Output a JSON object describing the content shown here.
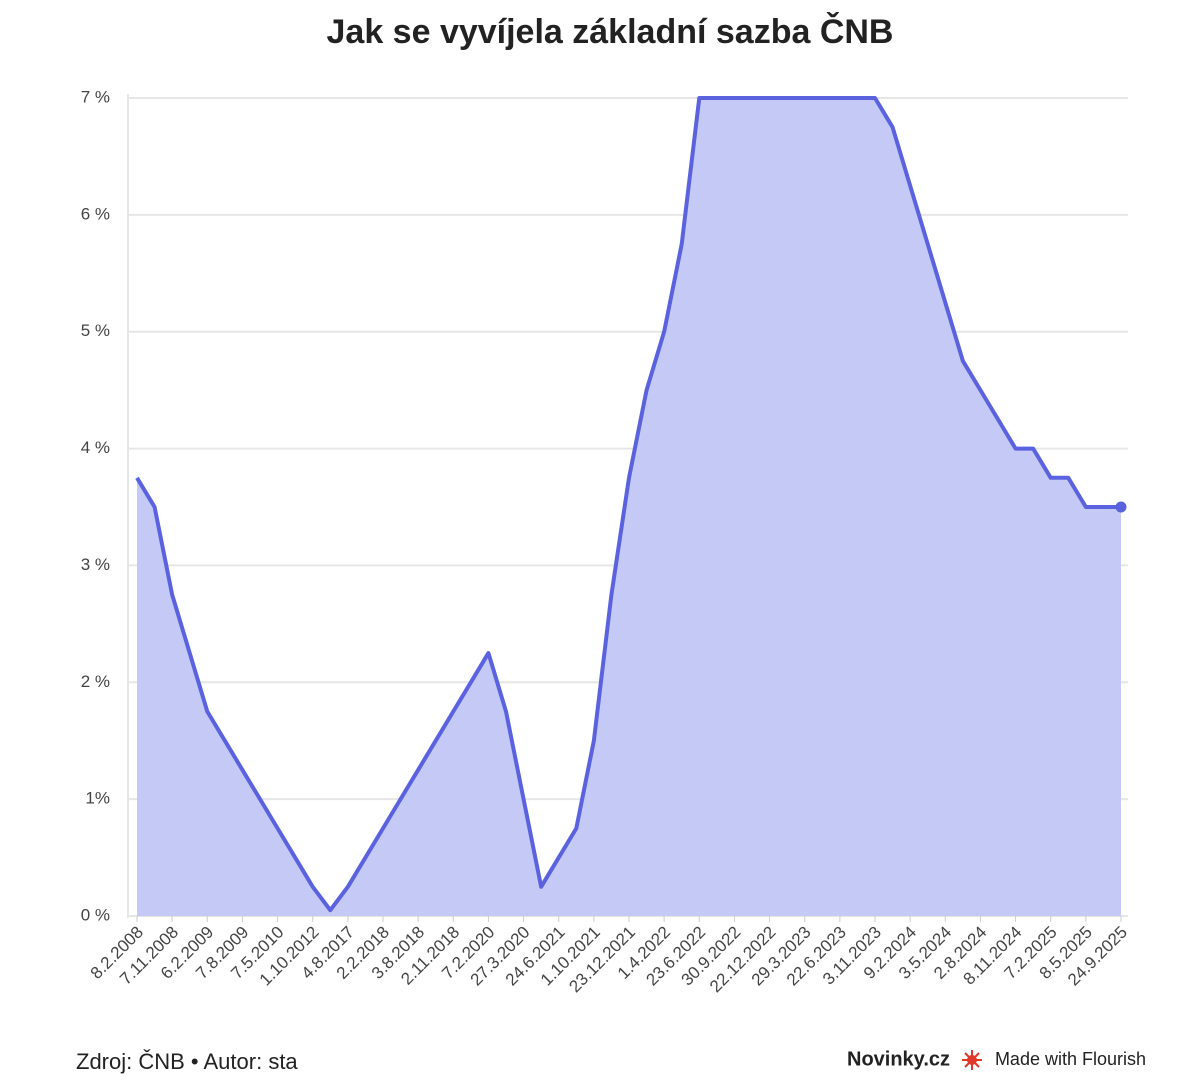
{
  "chart_data": {
    "type": "area",
    "title": "Jak se vyvíjela základní sazba ČNB",
    "categories": [
      "8.2.2008",
      null,
      "7.11.2008",
      null,
      "6.2.2009",
      null,
      "7.8.2009",
      null,
      "7.5.2010",
      null,
      "1.10.2012",
      null,
      "4.8.2017",
      null,
      "2.2.2018",
      null,
      "3.8.2018",
      null,
      "2.11.2018",
      null,
      "7.2.2020",
      null,
      "27.3.2020",
      null,
      "24.6.2021",
      null,
      "1.10.2021",
      null,
      "23.12.2021",
      null,
      "1.4.2022",
      null,
      "23.6.2022",
      null,
      "30.9.2022",
      null,
      "22.12.2022",
      null,
      "29.3.2023",
      null,
      "22.6.2023",
      null,
      "3.11.2023",
      null,
      "9.2.2024",
      null,
      "3.5.2024",
      null,
      "2.8.2024",
      null,
      "8.11.2024",
      null,
      "7.2.2025",
      null,
      "8.5.2025",
      null,
      "24.9.2025"
    ],
    "values": [
      3.75,
      3.5,
      2.75,
      2.25,
      1.75,
      1.5,
      1.25,
      1.0,
      0.75,
      0.5,
      0.25,
      0.05,
      0.25,
      0.5,
      0.75,
      1.0,
      1.25,
      1.5,
      1.75,
      2.0,
      2.25,
      1.75,
      1.0,
      0.25,
      0.5,
      0.75,
      1.5,
      2.75,
      3.75,
      4.5,
      5.0,
      5.75,
      7,
      7,
      7,
      7,
      7,
      7,
      7,
      7,
      7,
      7,
      7,
      6.75,
      6.25,
      5.75,
      5.25,
      4.75,
      4.5,
      4.25,
      4.0,
      4.0,
      3.75,
      3.75,
      3.5,
      3.5,
      3.5
    ],
    "color": "#5a62e0",
    "fill_color": "#c4c9f5",
    "ylim": [
      0,
      7
    ],
    "yticks": [
      {
        "value": 0,
        "label": "0 %"
      },
      {
        "value": 1,
        "label": "1%"
      },
      {
        "value": 2,
        "label": "2 %"
      },
      {
        "value": 3,
        "label": "3 %"
      },
      {
        "value": 4,
        "label": "4 %"
      },
      {
        "value": 5,
        "label": "5 %"
      },
      {
        "value": 6,
        "label": "6 %"
      },
      {
        "value": 7,
        "label": "7 %"
      }
    ],
    "grid": true,
    "source": "Zdroj: ČNB • Autor: sta",
    "publisher": "Novinky.cz",
    "credit": "Made with Flourish"
  }
}
